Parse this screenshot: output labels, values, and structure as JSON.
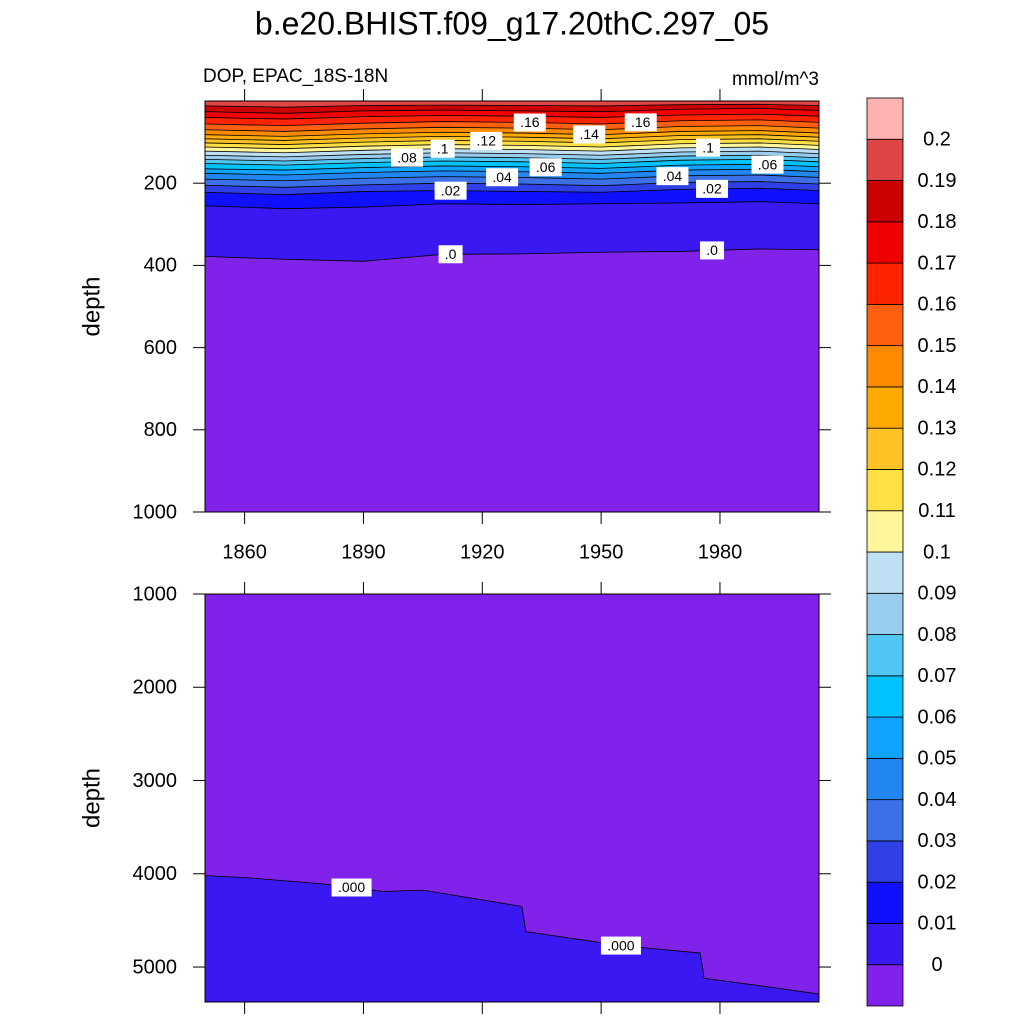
{
  "title": "b.e20.BHIST.f09_g17.20thC.297_05",
  "colorbar": {
    "levels": [
      0,
      0.01,
      0.02,
      0.03,
      0.04,
      0.05,
      0.06,
      0.07,
      0.08,
      0.09,
      0.1,
      0.11,
      0.12,
      0.13,
      0.14,
      0.15,
      0.16,
      0.17,
      0.18,
      0.19,
      0.2
    ],
    "colors": [
      "#8022ea",
      "#3a18f2",
      "#1010ff",
      "#2f40e6",
      "#3c70e6",
      "#2286f0",
      "#12a2ff",
      "#00c2ff",
      "#52c6f2",
      "#98cdef",
      "#bfe0f4",
      "#fff59a",
      "#ffe044",
      "#ffc224",
      "#ffaa00",
      "#ff8a00",
      "#ff6010",
      "#ff2400",
      "#f00000",
      "#cc0000",
      "#e04545",
      "#ffb2b2"
    ]
  },
  "chart_data": [
    {
      "type": "contour",
      "subtitle_left": "DOP, EPAC_18S-18N",
      "subtitle_right": "mmol/m^3",
      "ylabel": "depth",
      "xlim": [
        1850,
        2005
      ],
      "xticks": [
        1860,
        1890,
        1920,
        1950,
        1980
      ],
      "show_xtick_labels": true,
      "ylim": [
        0,
        1000
      ],
      "yticks": [
        200,
        400,
        600,
        800,
        1000
      ],
      "y_reversed": true,
      "fill_side": "above",
      "x": [
        1850,
        1870,
        1890,
        1910,
        1930,
        1950,
        1970,
        1990,
        2005
      ],
      "series": [
        {
          "level": 0,
          "values": [
            378,
            385,
            390,
            373,
            372,
            368,
            366,
            360,
            362
          ]
        },
        {
          "level": 0.01,
          "values": [
            255,
            262,
            258,
            250,
            252,
            250,
            248,
            245,
            250
          ]
        },
        {
          "level": 0.02,
          "values": [
            222,
            228,
            220,
            218,
            220,
            222,
            215,
            212,
            218
          ]
        },
        {
          "level": 0.03,
          "values": [
            205,
            210,
            204,
            200,
            202,
            206,
            198,
            196,
            202
          ]
        },
        {
          "level": 0.04,
          "values": [
            190,
            194,
            188,
            184,
            186,
            190,
            182,
            180,
            186
          ]
        },
        {
          "level": 0.05,
          "values": [
            176,
            180,
            174,
            170,
            172,
            176,
            168,
            166,
            172
          ]
        },
        {
          "level": 0.06,
          "values": [
            165,
            168,
            162,
            158,
            160,
            164,
            156,
            154,
            160
          ]
        },
        {
          "level": 0.07,
          "values": [
            152,
            156,
            150,
            146,
            148,
            152,
            144,
            142,
            148
          ]
        },
        {
          "level": 0.08,
          "values": [
            142,
            146,
            140,
            136,
            138,
            142,
            134,
            132,
            138
          ]
        },
        {
          "level": 0.09,
          "values": [
            132,
            136,
            130,
            126,
            128,
            132,
            124,
            122,
            128
          ]
        },
        {
          "level": 0.1,
          "values": [
            122,
            126,
            120,
            116,
            118,
            122,
            114,
            112,
            118
          ]
        },
        {
          "level": 0.11,
          "values": [
            112,
            116,
            110,
            106,
            108,
            112,
            104,
            102,
            108
          ]
        },
        {
          "level": 0.12,
          "values": [
            102,
            106,
            100,
            96,
            98,
            102,
            94,
            92,
            98
          ]
        },
        {
          "level": 0.13,
          "values": [
            92,
            96,
            90,
            86,
            88,
            92,
            84,
            82,
            88
          ]
        },
        {
          "level": 0.14,
          "values": [
            82,
            86,
            80,
            76,
            78,
            82,
            74,
            72,
            78
          ]
        },
        {
          "level": 0.15,
          "values": [
            70,
            74,
            68,
            64,
            66,
            70,
            62,
            60,
            66
          ]
        },
        {
          "level": 0.16,
          "values": [
            56,
            60,
            54,
            50,
            52,
            56,
            48,
            46,
            52
          ]
        },
        {
          "level": 0.17,
          "values": [
            40,
            44,
            38,
            35,
            37,
            40,
            34,
            32,
            37
          ]
        },
        {
          "level": 0.18,
          "values": [
            26,
            30,
            24,
            22,
            24,
            26,
            20,
            18,
            23
          ]
        },
        {
          "level": 0.19,
          "values": [
            12,
            15,
            11,
            10,
            11,
            12,
            9,
            8,
            11
          ]
        }
      ],
      "contour_labels": [
        {
          "text": ".16",
          "level": 0.16,
          "x": 1932
        },
        {
          "text": ".14",
          "level": 0.14,
          "x": 1947
        },
        {
          "text": ".16",
          "level": 0.16,
          "x": 1960
        },
        {
          "text": ".12",
          "level": 0.12,
          "x": 1921
        },
        {
          "text": ".1",
          "level": 0.1,
          "x": 1910
        },
        {
          "text": ".08",
          "level": 0.08,
          "x": 1901
        },
        {
          "text": ".06",
          "level": 0.06,
          "x": 1936
        },
        {
          "text": ".04",
          "level": 0.04,
          "x": 1925
        },
        {
          "text": ".02",
          "level": 0.02,
          "x": 1912
        },
        {
          "text": ".0",
          "level": 0,
          "x": 1912
        },
        {
          "text": ".1",
          "level": 0.1,
          "x": 1977
        },
        {
          "text": ".06",
          "level": 0.06,
          "x": 1992
        },
        {
          "text": ".04",
          "level": 0.04,
          "x": 1968
        },
        {
          "text": ".02",
          "level": 0.02,
          "x": 1978
        },
        {
          "text": ".0",
          "level": 0,
          "x": 1978
        }
      ]
    },
    {
      "type": "contour",
      "ylabel": "depth",
      "xlim": [
        1850,
        2005
      ],
      "xticks": [
        1860,
        1890,
        1920,
        1950,
        1980
      ],
      "show_xtick_labels": false,
      "ylim": [
        1000,
        5375
      ],
      "yticks": [
        1000,
        2000,
        3000,
        4000,
        5000
      ],
      "y_reversed": true,
      "fill_side": "below",
      "x": [
        1850,
        1860,
        1880,
        1895,
        1905,
        1930,
        1931,
        1955,
        1975,
        1976,
        1990,
        2005
      ],
      "series": [
        {
          "level": 0,
          "values": [
            4020,
            4040,
            4110,
            4190,
            4175,
            4350,
            4620,
            4770,
            4850,
            5120,
            5200,
            5290
          ]
        }
      ],
      "contour_labels": [
        {
          "text": ".000",
          "level": 0,
          "x": 1887
        },
        {
          "text": ".000",
          "level": 0,
          "x": 1955
        }
      ]
    }
  ]
}
